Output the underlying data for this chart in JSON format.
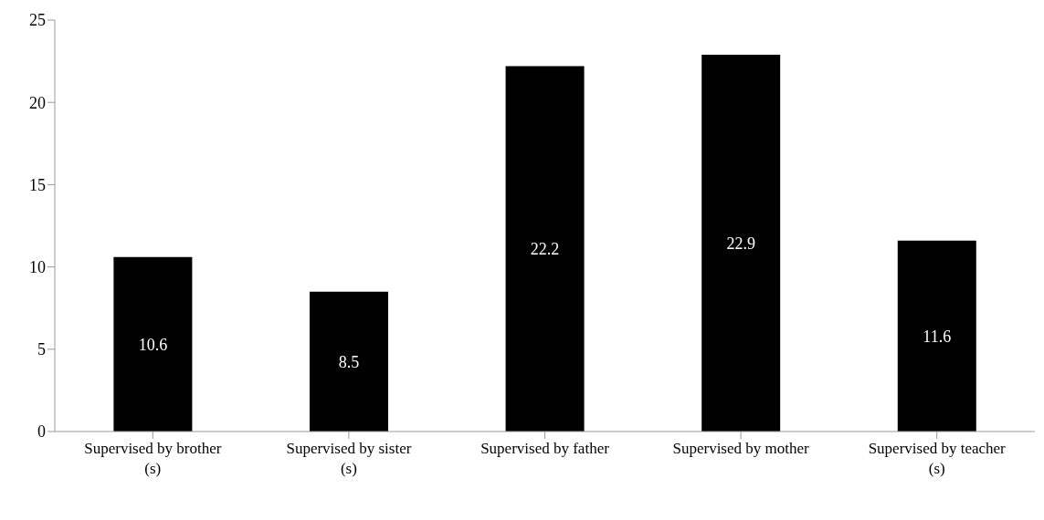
{
  "chart_data": {
    "type": "bar",
    "categories": [
      "Supervised by brother (s)",
      "Supervised by sister (s)",
      "Supervised by father",
      "Supervised by mother",
      "Supervised by teacher (s)"
    ],
    "values": [
      10.6,
      8.5,
      22.2,
      22.9,
      11.6
    ],
    "color": "#000000",
    "ylim": [
      0,
      25
    ],
    "yticks": [
      0,
      5,
      10,
      15,
      20,
      25
    ],
    "grid": false,
    "data_labels": true
  }
}
